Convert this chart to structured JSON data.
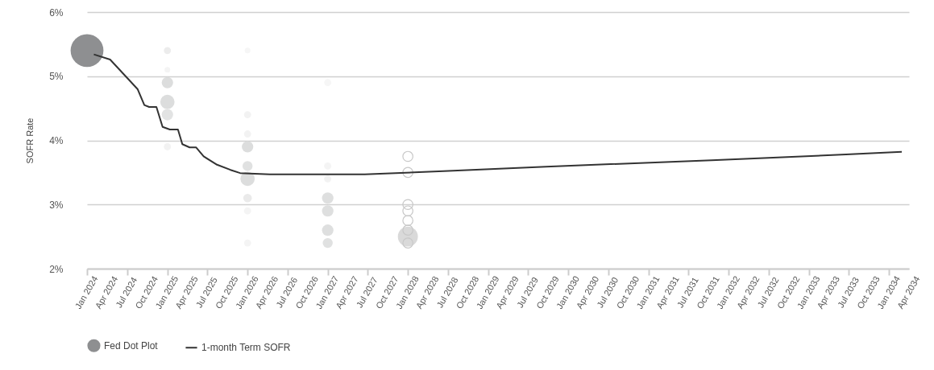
{
  "chart_data": {
    "type": "bubble",
    "ylabel": "SOFR Rate",
    "ylim": [
      2,
      6
    ],
    "yticks": [
      {
        "value": 2,
        "label": "2%"
      },
      {
        "value": 3,
        "label": "3%"
      },
      {
        "value": 4,
        "label": "4%"
      },
      {
        "value": 5,
        "label": "5%"
      },
      {
        "value": 6,
        "label": "6%"
      }
    ],
    "xlim": [
      "2024-01",
      "2034-04"
    ],
    "xticks": [
      {
        "value": "2024-01",
        "label": "Jan 2024"
      },
      {
        "value": "2024-04",
        "label": "Apr 2024"
      },
      {
        "value": "2024-07",
        "label": "Jul 2024"
      },
      {
        "value": "2024-10",
        "label": "Oct 2024"
      },
      {
        "value": "2025-01",
        "label": "Jan 2025"
      },
      {
        "value": "2025-04",
        "label": "Apr 2025"
      },
      {
        "value": "2025-07",
        "label": "Jul 2025"
      },
      {
        "value": "2025-10",
        "label": "Oct 2025"
      },
      {
        "value": "2026-01",
        "label": "Jan 2026"
      },
      {
        "value": "2026-04",
        "label": "Apr 2026"
      },
      {
        "value": "2026-07",
        "label": "Jul 2026"
      },
      {
        "value": "2026-10",
        "label": "Oct 2026"
      },
      {
        "value": "2027-01",
        "label": "Jan 2027"
      },
      {
        "value": "2027-04",
        "label": "Apr 2027"
      },
      {
        "value": "2027-07",
        "label": "Jul 2027"
      },
      {
        "value": "2027-10",
        "label": "Oct 2027"
      },
      {
        "value": "2028-01",
        "label": "Jan 2028"
      },
      {
        "value": "2028-04",
        "label": "Apr 2028"
      },
      {
        "value": "2028-07",
        "label": "Jul 2028"
      },
      {
        "value": "2028-10",
        "label": "Oct 2028"
      },
      {
        "value": "2029-01",
        "label": "Jan 2029"
      },
      {
        "value": "2029-04",
        "label": "Apr 2029"
      },
      {
        "value": "2029-07",
        "label": "Jul 2029"
      },
      {
        "value": "2029-10",
        "label": "Oct 2029"
      },
      {
        "value": "2030-01",
        "label": "Jan 2030"
      },
      {
        "value": "2030-04",
        "label": "Apr 2030"
      },
      {
        "value": "2030-07",
        "label": "Jul 2030"
      },
      {
        "value": "2030-10",
        "label": "Oct 2030"
      },
      {
        "value": "2031-01",
        "label": "Jan 2031"
      },
      {
        "value": "2031-04",
        "label": "Apr 2031"
      },
      {
        "value": "2031-07",
        "label": "Jul 2031"
      },
      {
        "value": "2031-10",
        "label": "Oct 2031"
      },
      {
        "value": "2032-01",
        "label": "Jan 2032"
      },
      {
        "value": "2032-04",
        "label": "Apr 2032"
      },
      {
        "value": "2032-07",
        "label": "Jul 2032"
      },
      {
        "value": "2032-10",
        "label": "Oct 2032"
      },
      {
        "value": "2033-01",
        "label": "Jan 2033"
      },
      {
        "value": "2033-04",
        "label": "Apr 2033"
      },
      {
        "value": "2033-07",
        "label": "Jul 2033"
      },
      {
        "value": "2033-10",
        "label": "Oct 2033"
      },
      {
        "value": "2034-01",
        "label": "Jan 2034"
      },
      {
        "value": "2034-04",
        "label": "Apr 2034"
      }
    ],
    "grid": "y",
    "legend": "bottom",
    "series": [
      {
        "name": "Fed Dot Plot",
        "color": "#8e8f91",
        "x": [
          "2024-01",
          "2025-01",
          "2025-01",
          "2025-01",
          "2025-01",
          "2025-01",
          "2025-01",
          "2026-01",
          "2026-01",
          "2026-01",
          "2026-01",
          "2026-01",
          "2026-01",
          "2026-01",
          "2026-01",
          "2026-01",
          "2027-01",
          "2027-01",
          "2027-01",
          "2027-01",
          "2027-01",
          "2027-01",
          "2027-01",
          "2028-01"
        ],
        "values": [
          5.4,
          5.4,
          5.1,
          4.9,
          4.6,
          4.4,
          3.9,
          5.4,
          4.4,
          4.1,
          3.9,
          3.6,
          3.4,
          3.1,
          2.9,
          2.4,
          4.9,
          3.6,
          3.4,
          3.1,
          2.9,
          2.6,
          2.4,
          2.5
        ],
        "sizes": [
          1,
          0.047,
          0.03,
          0.121,
          0.189,
          0.121,
          0.047,
          0.03,
          0.047,
          0.047,
          0.121,
          0.093,
          0.189,
          0.068,
          0.047,
          0.047,
          0.047,
          0.047,
          0.047,
          0.121,
          0.121,
          0.121,
          0.093,
          0.37
        ],
        "colors": [
          "#8e8f91",
          "#ececec",
          "#f4f4f4",
          "#dcdddd",
          "#dcdddd",
          "#e2e3e3",
          "#f2f2f2",
          "#f6f6f6",
          "#f2f2f2",
          "#f2f2f2",
          "#dcdddd",
          "#e0e1e1",
          "#dcdddd",
          "#eaeaea",
          "#f4f4f4",
          "#f4f4f4",
          "#f6f6f6",
          "#f4f4f4",
          "#f2f2f2",
          "#dedfdf",
          "#dedfdf",
          "#dedfdf",
          "#e0e1e1",
          "#d9d9d9"
        ]
      },
      {
        "color": "#c8c8c8",
        "x": [
          "2028-01",
          "2028-01",
          "2028-01",
          "2028-01",
          "2028-01",
          "2028-01",
          "2028-01"
        ],
        "values": [
          3.75,
          3.5,
          3.0,
          2.9,
          2.75,
          2.6,
          2.4
        ],
        "sizes": [
          0.093,
          0.093,
          0.093,
          0.093,
          0.093,
          0.093,
          0.093
        ]
      },
      {
        "name": "1-month Term SOFR",
        "type": "line",
        "color": "#333333",
        "x": [
          "2024-02-01",
          "2024-04-15",
          "2024-08-18",
          "2024-09-18",
          "2024-10-10",
          "2024-11-12",
          "2024-12-10",
          "2025-01-12",
          "2025-02-18",
          "2025-03-10",
          "2025-04-12",
          "2025-05-12",
          "2025-06-15",
          "2025-08-15",
          "2025-10-15",
          "2025-11-28",
          "2026-04-12",
          "2027-06-18",
          "2028-06-12",
          "2029-09-21",
          "2031-10-15",
          "2033-06-18",
          "2034-02-27"
        ],
        "values": [
          5.34,
          5.26,
          4.8,
          4.55,
          4.52,
          4.52,
          4.21,
          4.17,
          4.17,
          3.94,
          3.89,
          3.89,
          3.75,
          3.62,
          3.54,
          3.49,
          3.47,
          3.47,
          3.52,
          3.59,
          3.69,
          3.78,
          3.82
        ]
      }
    ]
  }
}
